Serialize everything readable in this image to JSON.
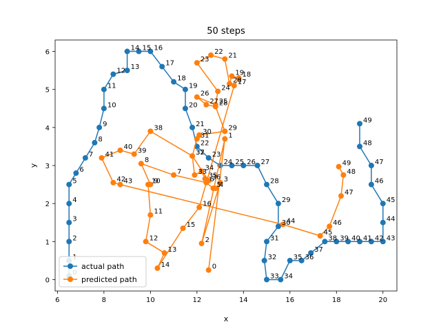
{
  "chart_data": {
    "type": "line",
    "title": "50 steps",
    "xlabel": "x",
    "ylabel": "y",
    "xlim": [
      5.9,
      20.6
    ],
    "ylim": [
      -0.3,
      6.3
    ],
    "xticks": [
      6,
      8,
      10,
      12,
      14,
      16,
      18,
      20
    ],
    "yticks": [
      0,
      1,
      2,
      3,
      4,
      5,
      6
    ],
    "grid": false,
    "legend": {
      "placement": "lower-left"
    },
    "series": [
      {
        "name": "actual path",
        "color": "#1f77b4",
        "points": [
          [
            6.5,
            0.1
          ],
          [
            6.5,
            0.5
          ],
          [
            6.5,
            1.0
          ],
          [
            6.5,
            1.5
          ],
          [
            6.5,
            2.0
          ],
          [
            6.5,
            2.5
          ],
          [
            6.8,
            2.8
          ],
          [
            7.2,
            3.2
          ],
          [
            7.6,
            3.6
          ],
          [
            7.8,
            4.0
          ],
          [
            8.0,
            4.5
          ],
          [
            8.0,
            5.0
          ],
          [
            8.4,
            5.4
          ],
          [
            9.0,
            5.5
          ],
          [
            9.0,
            6.0
          ],
          [
            9.5,
            6.0
          ],
          [
            10.0,
            6.0
          ],
          [
            10.5,
            5.6
          ],
          [
            11.0,
            5.2
          ],
          [
            11.5,
            5.0
          ],
          [
            11.5,
            4.5
          ],
          [
            11.8,
            4.0
          ],
          [
            12.0,
            3.5
          ],
          [
            12.5,
            3.2
          ],
          [
            13.0,
            3.0
          ],
          [
            13.5,
            3.0
          ],
          [
            14.0,
            3.0
          ],
          [
            14.6,
            3.0
          ],
          [
            15.0,
            2.5
          ],
          [
            15.5,
            2.0
          ],
          [
            15.5,
            1.4
          ],
          [
            15.0,
            1.0
          ],
          [
            14.9,
            0.5
          ],
          [
            15.0,
            0.0
          ],
          [
            15.6,
            0.0
          ],
          [
            16.0,
            0.5
          ],
          [
            16.5,
            0.5
          ],
          [
            16.9,
            0.7
          ],
          [
            17.5,
            1.0
          ],
          [
            18.0,
            1.0
          ],
          [
            18.5,
            1.0
          ],
          [
            19.0,
            1.0
          ],
          [
            19.5,
            1.0
          ],
          [
            20.0,
            1.0
          ],
          [
            20.0,
            1.5
          ],
          [
            20.0,
            2.0
          ],
          [
            19.5,
            2.5
          ],
          [
            19.5,
            3.0
          ],
          [
            19.0,
            3.5
          ],
          [
            19.0,
            4.1
          ]
        ]
      },
      {
        "name": "predicted path",
        "color": "#ff7f0e",
        "points": [
          [
            12.5,
            0.25
          ],
          [
            13.2,
            3.7
          ],
          [
            12.2,
            0.95
          ],
          [
            13.0,
            2.55
          ],
          [
            12.8,
            2.4
          ],
          [
            12.7,
            2.4
          ],
          [
            12.4,
            2.55
          ],
          [
            11.0,
            2.75
          ],
          [
            9.6,
            3.05
          ],
          [
            10.0,
            2.5
          ],
          [
            9.9,
            2.5
          ],
          [
            10.0,
            1.7
          ],
          [
            9.8,
            1.0
          ],
          [
            10.6,
            0.7
          ],
          [
            10.3,
            0.3
          ],
          [
            11.4,
            1.35
          ],
          [
            12.1,
            1.9
          ],
          [
            13.6,
            5.1
          ],
          [
            13.8,
            5.3
          ],
          [
            13.5,
            5.35
          ],
          [
            13.4,
            5.15
          ],
          [
            13.2,
            5.8
          ],
          [
            12.6,
            5.9
          ],
          [
            12.0,
            5.7
          ],
          [
            12.9,
            4.95
          ],
          [
            12.8,
            4.6
          ],
          [
            12.0,
            4.8
          ],
          [
            12.4,
            4.6
          ],
          [
            12.8,
            4.55
          ],
          [
            13.2,
            3.9
          ],
          [
            12.1,
            3.8
          ],
          [
            12.0,
            3.7
          ],
          [
            11.8,
            3.25
          ],
          [
            11.9,
            2.75
          ],
          [
            12.2,
            2.85
          ],
          [
            12.35,
            2.65
          ],
          [
            12.5,
            2.6
          ],
          [
            11.8,
            3.25
          ],
          [
            10.0,
            3.9
          ],
          [
            9.3,
            3.3
          ],
          [
            8.7,
            3.4
          ],
          [
            7.9,
            3.2
          ],
          [
            8.4,
            2.55
          ],
          [
            8.7,
            2.5
          ],
          [
            15.7,
            1.45
          ],
          [
            17.3,
            1.15
          ],
          [
            17.7,
            1.4
          ],
          [
            18.2,
            2.2
          ],
          [
            18.3,
            2.75
          ],
          [
            18.1,
            2.97
          ]
        ]
      }
    ]
  }
}
